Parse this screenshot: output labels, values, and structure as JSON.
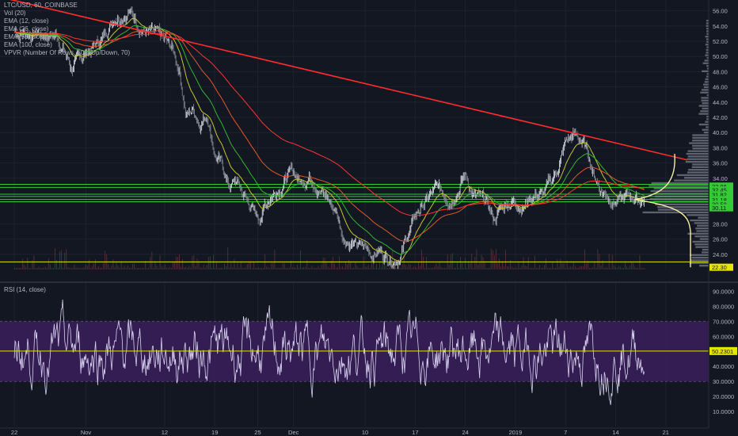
{
  "header": {
    "symbol_line": "LTC/USD, 60, COINBASE",
    "indicators": [
      "Vol (20)",
      "EMA (12, close)",
      "EMA (26, close)",
      "EMA (50, close)",
      "EMA (100, close)",
      "VPVR (Number Of Rows, 100, Up/Down, 70)"
    ]
  },
  "rsi_label": "RSI (14, close)",
  "colors": {
    "background": "#131722",
    "candle_up": "#d1d4dc",
    "trendline": "#ff2b2b",
    "hlines": "#33cc33",
    "support": "#e6e600",
    "ema12": "#c6c632",
    "ema26": "#33b433",
    "ema50": "#ff3333",
    "rsi_line": "#d9d2f0",
    "rsi_band": "#3a1e5c",
    "vpvr": "#9aa0ad"
  },
  "chart_data": [
    {
      "type": "line",
      "name": "price",
      "ylim": [
        22,
        57
      ],
      "yticks": [
        "56.00",
        "54.00",
        "52.00",
        "50.00",
        "48.00",
        "46.00",
        "44.00",
        "42.00",
        "40.00",
        "38.00",
        "36.00",
        "34.00",
        "28.00",
        "26.00",
        "24.00"
      ],
      "ytick_values": [
        56,
        54,
        52,
        50,
        48,
        46,
        44,
        42,
        40,
        38,
        36,
        34,
        28,
        26,
        24
      ],
      "xticks": [
        "22",
        "Nov",
        "12",
        "19",
        "25",
        "Dec",
        "10",
        "17",
        "24",
        "2019",
        "7",
        "14",
        "21"
      ],
      "xtick_positions": [
        0,
        10,
        21,
        28,
        34,
        39,
        49,
        56,
        63,
        70,
        77,
        84,
        91
      ],
      "xlim": [
        -2,
        97
      ],
      "series_points": [
        [
          0,
          53.2
        ],
        [
          3,
          53.0
        ],
        [
          6,
          52.8
        ],
        [
          8,
          48.5
        ],
        [
          10,
          50.5
        ],
        [
          12,
          52.0
        ],
        [
          14,
          55.5
        ],
        [
          16,
          56.2
        ],
        [
          18,
          53.5
        ],
        [
          20,
          52.5
        ],
        [
          22,
          51.0
        ],
        [
          23,
          48.5
        ],
        [
          24,
          42.5
        ],
        [
          25,
          43.0
        ],
        [
          26,
          41.5
        ],
        [
          27,
          42.5
        ],
        [
          28,
          37.5
        ],
        [
          29,
          35.5
        ],
        [
          30,
          33.0
        ],
        [
          31,
          33.5
        ],
        [
          32,
          31.8
        ],
        [
          33,
          30.5
        ],
        [
          34,
          28.5
        ],
        [
          35,
          30.5
        ],
        [
          36,
          32.0
        ],
        [
          37,
          33.0
        ],
        [
          38,
          34.2
        ],
        [
          39,
          34.8
        ],
        [
          40,
          33.5
        ],
        [
          41,
          34.5
        ],
        [
          42,
          33.8
        ],
        [
          43,
          32.2
        ],
        [
          44,
          31.0
        ],
        [
          45,
          29.5
        ],
        [
          46,
          26.5
        ],
        [
          47,
          25.5
        ],
        [
          48,
          25.0
        ],
        [
          49,
          24.8
        ],
        [
          50,
          24.2
        ],
        [
          51,
          24.5
        ],
        [
          52,
          23.8
        ],
        [
          53,
          23.5
        ],
        [
          54,
          24.2
        ],
        [
          55,
          26.5
        ],
        [
          56,
          29.0
        ],
        [
          57,
          30.5
        ],
        [
          58,
          31.5
        ],
        [
          59,
          32.5
        ],
        [
          60,
          32.0
        ],
        [
          61,
          31.5
        ],
        [
          62,
          33.0
        ],
        [
          63,
          34.5
        ],
        [
          64,
          32.0
        ],
        [
          65,
          31.0
        ],
        [
          66,
          30.5
        ],
        [
          67,
          28.5
        ],
        [
          68,
          30.0
        ],
        [
          69,
          31.0
        ],
        [
          70,
          31.0
        ],
        [
          71,
          30.5
        ],
        [
          72,
          31.5
        ],
        [
          73,
          32.0
        ],
        [
          74,
          31.8
        ],
        [
          75,
          33.5
        ],
        [
          76,
          35.5
        ],
        [
          77,
          38.5
        ],
        [
          78,
          39.5
        ],
        [
          79,
          39.2
        ],
        [
          80,
          37.5
        ],
        [
          81,
          34.5
        ],
        [
          82,
          32.5
        ],
        [
          83,
          31.8
        ],
        [
          84,
          31.2
        ],
        [
          85,
          31.0
        ],
        [
          86,
          31.5
        ],
        [
          87,
          31.2
        ],
        [
          88,
          31.3
        ]
      ],
      "trendline": [
        [
          -2,
          57.8
        ],
        [
          94,
          36.4
        ]
      ],
      "hlines": [
        33.2,
        32.8,
        31.9,
        31.6,
        31.2,
        30.9,
        23.0
      ],
      "right_labels": [
        {
          "value": 32.96,
          "text": "32.96",
          "bg": "#33cc33"
        },
        {
          "value": 32.45,
          "text": "32.45",
          "bg": "#33cc33"
        },
        {
          "value": 31.82,
          "text": "31.82",
          "bg": "#33cc33"
        },
        {
          "value": 31.18,
          "text": "31.18",
          "bg": "#33cc33"
        },
        {
          "value": 30.33,
          "text": "30.33",
          "bg": "#33cc33"
        },
        {
          "value": 30.58,
          "text": "30.58",
          "bg": "#33cc33"
        },
        {
          "value": 30.11,
          "text": "30.11",
          "bg": "#33cc33"
        },
        {
          "value": 22.3,
          "text": "22.30",
          "bg": "#e6e600"
        }
      ]
    },
    {
      "type": "line",
      "name": "RSI (14, close)",
      "ylim": [
        0,
        95
      ],
      "yticks": [
        "90.0000",
        "80.0000",
        "70.0000",
        "60.0000",
        "50.2301",
        "40.0000",
        "30.0000",
        "20.0000",
        "10.0000"
      ],
      "ytick_values": [
        90,
        80,
        70,
        60,
        50.2301,
        40,
        30,
        20,
        10
      ],
      "band": [
        30,
        70
      ],
      "hline": 50.2301,
      "last_value": "50.2301"
    }
  ]
}
